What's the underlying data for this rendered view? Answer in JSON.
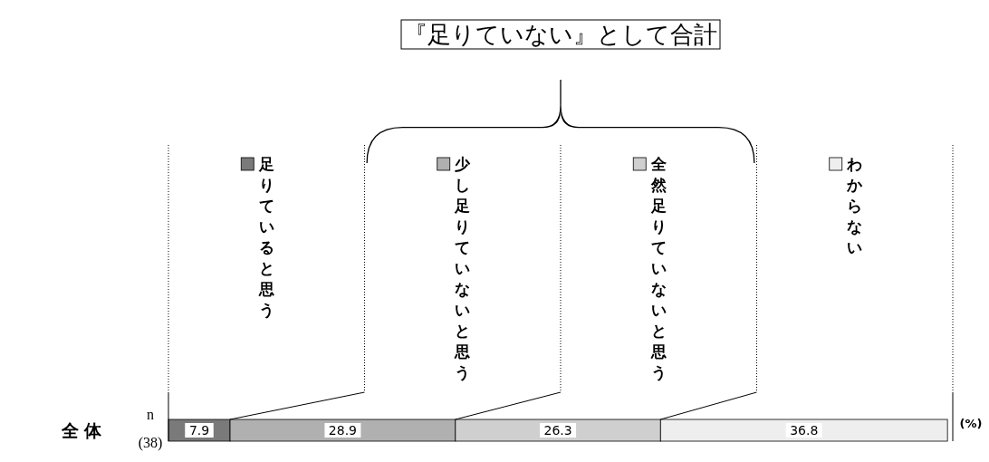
{
  "chart_data": {
    "type": "bar",
    "orientation": "horizontal",
    "stacked": true,
    "data_labels": true,
    "legend": "top",
    "xlim": [
      0,
      100
    ],
    "tick_labels": false,
    "categories": [
      "全 体"
    ],
    "series": [
      {
        "name": "足りていると思う",
        "color": "#7a7a7a",
        "values": [
          7.9
        ]
      },
      {
        "name": "少し足りていないと思う",
        "color": "#b0b0b0",
        "values": [
          28.9
        ]
      },
      {
        "name": "全然足りていないと思う",
        "color": "#cfcfcf",
        "values": [
          26.3
        ]
      },
      {
        "name": "わからない",
        "color": "#eeeeee",
        "values": [
          36.8
        ]
      }
    ],
    "annotations": [
      "『足りていない』として合計",
      "n",
      "(38)",
      "(%)"
    ]
  }
}
